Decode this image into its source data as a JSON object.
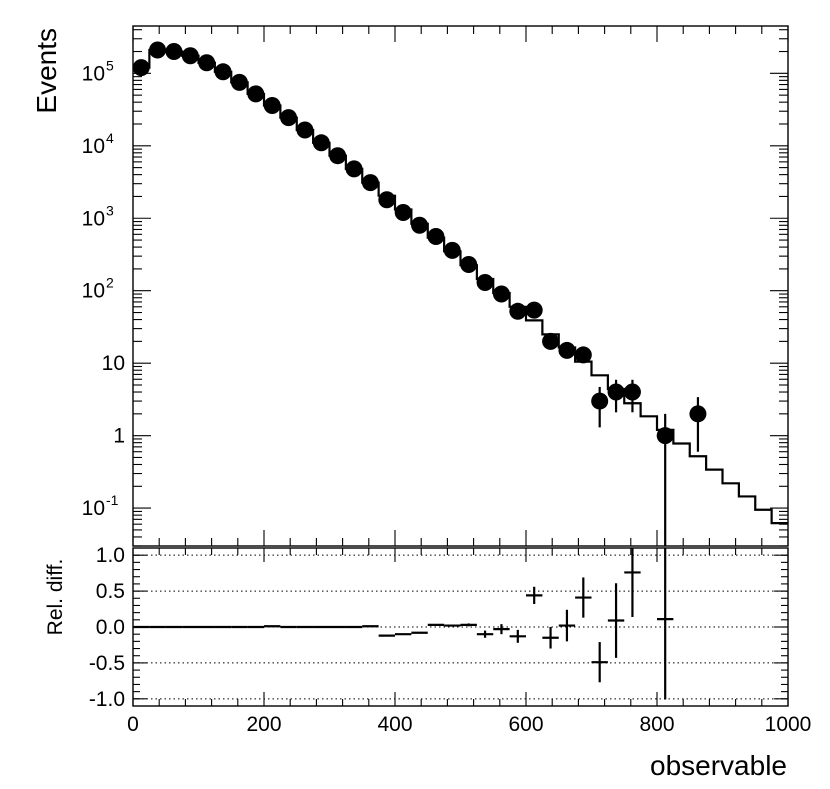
{
  "chart_data": [
    {
      "type": "line",
      "ylabel": "Events",
      "yscale": "log",
      "ylim": [
        0.03,
        450000
      ],
      "xlim": [
        0,
        1000
      ],
      "yticks": [
        {
          "value": 0.1,
          "base": "10",
          "exp": "-1"
        },
        {
          "value": 1,
          "label": "1"
        },
        {
          "value": 10,
          "label": "10"
        },
        {
          "value": 100,
          "base": "10",
          "exp": "2"
        },
        {
          "value": 1000,
          "base": "10",
          "exp": "3"
        },
        {
          "value": 10000,
          "base": "10",
          "exp": "4"
        },
        {
          "value": 100000,
          "base": "10",
          "exp": "5"
        }
      ],
      "series": [
        {
          "style": "histogram-step",
          "bin_edges": [
            0,
            25,
            50,
            75,
            100,
            125,
            150,
            175,
            200,
            225,
            250,
            275,
            300,
            325,
            350,
            375,
            400,
            425,
            450,
            475,
            500,
            525,
            550,
            575,
            600,
            625,
            650,
            675,
            700,
            725,
            750,
            775,
            800,
            825,
            850,
            875,
            900,
            925,
            950,
            975,
            1000
          ],
          "values": [
            120000,
            210000,
            200000,
            175000,
            140000,
            105000,
            75000,
            52000,
            36000,
            24500,
            16500,
            11000,
            7300,
            4800,
            3100,
            2050,
            1320,
            840,
            540,
            350,
            225,
            145,
            93,
            60,
            39,
            25,
            16.5,
            10.5,
            6.8,
            4.4,
            2.8,
            1.85,
            1.2,
            0.78,
            0.52,
            0.34,
            0.22,
            0.145,
            0.095,
            0.062
          ]
        },
        {
          "style": "points-with-errors",
          "x": [
            12.5,
            37.5,
            62.5,
            87.5,
            112.5,
            137.5,
            162.5,
            187.5,
            212.5,
            237.5,
            262.5,
            287.5,
            312.5,
            337.5,
            362.5,
            387.5,
            412.5,
            437.5,
            462.5,
            487.5,
            512.5,
            537.5,
            562.5,
            587.5,
            612.5,
            637.5,
            662.5,
            687.5,
            712.5,
            737.5,
            762.5,
            812.5,
            862.5
          ],
          "y": [
            120000,
            210000,
            200000,
            175000,
            140000,
            105000,
            75000,
            52000,
            36000,
            24500,
            16500,
            11000,
            7300,
            4800,
            3100,
            1800,
            1200,
            800,
            560,
            360,
            230,
            130,
            90,
            52,
            54,
            20,
            15,
            13,
            3,
            4,
            4,
            1,
            2
          ],
          "yerr_low": [
            0,
            0,
            0,
            0,
            0,
            0,
            0,
            0,
            0,
            0,
            0,
            0,
            0,
            0,
            0,
            0,
            0,
            0,
            0,
            0,
            0,
            0,
            0,
            0,
            0,
            0,
            0,
            0,
            1.7,
            1.9,
            1.9,
            1,
            1.4
          ],
          "yerr_high": [
            0,
            0,
            0,
            0,
            0,
            0,
            0,
            0,
            0,
            0,
            0,
            0,
            0,
            0,
            0,
            0,
            0,
            0,
            0,
            0,
            0,
            0,
            0,
            0,
            0,
            0,
            0,
            0,
            1.7,
            1.9,
            1.9,
            1,
            1.4
          ]
        }
      ]
    },
    {
      "type": "scatter",
      "xlabel": "observable",
      "ylabel": "Rel. diff.",
      "xlim": [
        0,
        1000
      ],
      "ylim": [
        -1.1,
        1.1
      ],
      "xticks": [
        0,
        200,
        400,
        600,
        800,
        1000
      ],
      "yticks": [
        {
          "value": 1,
          "label": "1.0"
        },
        {
          "value": 0.5,
          "label": "0.5"
        },
        {
          "value": 0,
          "label": "0.0"
        },
        {
          "value": -0.5,
          "label": "-0.5"
        },
        {
          "value": -1,
          "label": "-1.0"
        }
      ],
      "gridlines_y": [
        1,
        0.5,
        0,
        -0.5,
        -1
      ],
      "series": [
        {
          "style": "crosses",
          "x": [
            12.5,
            37.5,
            62.5,
            87.5,
            112.5,
            137.5,
            162.5,
            187.5,
            212.5,
            237.5,
            262.5,
            287.5,
            312.5,
            337.5,
            362.5,
            387.5,
            412.5,
            437.5,
            462.5,
            487.5,
            512.5,
            537.5,
            562.5,
            587.5,
            612.5,
            637.5,
            662.5,
            687.5,
            712.5,
            737.5,
            762.5,
            812.5
          ],
          "y": [
            0,
            0,
            0,
            0,
            0,
            0,
            0,
            0,
            0.01,
            0,
            0,
            0,
            0,
            0,
            0.01,
            -0.12,
            -0.1,
            -0.08,
            0.03,
            0.02,
            0.03,
            -0.1,
            -0.03,
            -0.13,
            0.44,
            -0.15,
            0.02,
            0.41,
            -0.49,
            0.09,
            0.76,
            0.11
          ],
          "yerr": [
            0,
            0,
            0,
            0,
            0,
            0,
            0,
            0,
            0,
            0,
            0,
            0,
            0,
            0,
            0,
            0,
            0,
            0,
            0,
            0,
            0.02,
            0.05,
            0.07,
            0.09,
            0.12,
            0.15,
            0.22,
            0.28,
            0.28,
            0.52,
            0.62,
            1.12
          ]
        }
      ]
    }
  ]
}
